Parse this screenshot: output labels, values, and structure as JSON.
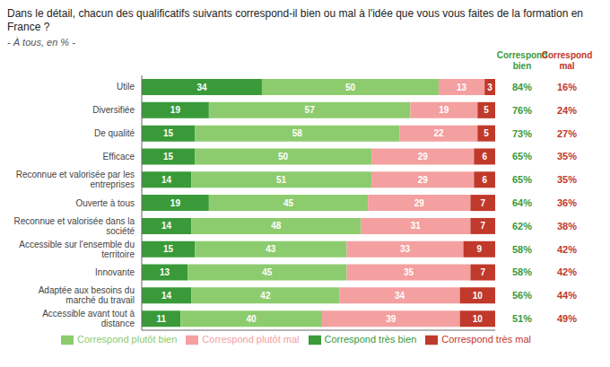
{
  "chart_data": {
    "type": "bar",
    "orientation": "horizontal",
    "stacked": true,
    "data_labels": true,
    "grid": false,
    "tick_labels": "y",
    "title": "Dans le détail, chacun des qualificatifs suivants correspond-il bien ou mal à l'idée que vous vous faites de la formation en France ?",
    "subtitle": "- À tous, en % -",
    "categories": [
      "Utile",
      "Diversifiée",
      "De qualité",
      "Efficace",
      "Reconnue et valorisée par les\nentreprises",
      "Ouverte à tous",
      "Reconnue et valorisée dans la\nsociété",
      "Accessible sur l'ensemble du\nterritoire",
      "Innovante",
      "Adaptée aux besoins du\nmarché du travail",
      "Accessible avant tout à\ndistance"
    ],
    "series": [
      {
        "name": "Correspond très bien",
        "color": "#3a9a3a",
        "values": [
          34,
          19,
          15,
          15,
          14,
          19,
          14,
          15,
          13,
          14,
          11
        ]
      },
      {
        "name": "Correspond plutôt bien",
        "color": "#8dcc6e",
        "values": [
          50,
          57,
          58,
          50,
          51,
          45,
          48,
          43,
          45,
          42,
          40
        ]
      },
      {
        "name": "Correspond plutôt mal",
        "color": "#f4a0a0",
        "values": [
          13,
          19,
          22,
          29,
          29,
          29,
          31,
          33,
          35,
          34,
          39
        ]
      },
      {
        "name": "Correspond très mal",
        "color": "#c0392b",
        "values": [
          3,
          5,
          5,
          6,
          6,
          7,
          7,
          9,
          7,
          10,
          10
        ]
      }
    ],
    "xlim": [
      0,
      100
    ],
    "summary_columns": [
      {
        "name": "Correspond\nbien",
        "color": "#3a9a3a",
        "values": [
          84,
          76,
          73,
          65,
          65,
          64,
          62,
          58,
          58,
          56,
          51
        ],
        "value_labels": [
          "84%",
          "76%",
          "73%",
          "65%",
          "65%",
          "64%",
          "62%",
          "58%",
          "58%",
          "56%",
          "51%"
        ]
      },
      {
        "name": "Correspond\nmal",
        "color": "#c0392b",
        "values": [
          16,
          24,
          27,
          35,
          35,
          36,
          38,
          42,
          42,
          44,
          49
        ],
        "value_labels": [
          "16%",
          "24%",
          "27%",
          "35%",
          "35%",
          "36%",
          "38%",
          "42%",
          "42%",
          "44%",
          "49%"
        ]
      }
    ]
  }
}
